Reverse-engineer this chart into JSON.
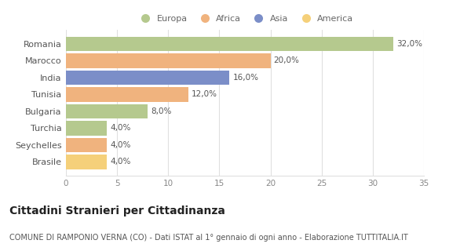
{
  "countries": [
    "Romania",
    "Marocco",
    "India",
    "Tunisia",
    "Bulgaria",
    "Turchia",
    "Seychelles",
    "Brasile"
  ],
  "values": [
    32.0,
    20.0,
    16.0,
    12.0,
    8.0,
    4.0,
    4.0,
    4.0
  ],
  "labels": [
    "32,0%",
    "20,0%",
    "16,0%",
    "12,0%",
    "8,0%",
    "4,0%",
    "4,0%",
    "4,0%"
  ],
  "colors": [
    "#b5c98e",
    "#f0b37e",
    "#7b8ec8",
    "#f0b37e",
    "#b5c98e",
    "#b5c98e",
    "#f0b37e",
    "#f5d07a"
  ],
  "legend_labels": [
    "Europa",
    "Africa",
    "Asia",
    "America"
  ],
  "legend_colors": [
    "#b5c98e",
    "#f0b37e",
    "#7b8ec8",
    "#f5d07a"
  ],
  "xlim": [
    0,
    35
  ],
  "xticks": [
    0,
    5,
    10,
    15,
    20,
    25,
    30,
    35
  ],
  "title": "Cittadini Stranieri per Cittadinanza",
  "subtitle": "COMUNE DI RAMPONIO VERNA (CO) - Dati ISTAT al 1° gennaio di ogni anno - Elaborazione TUTTITALIA.IT",
  "bg_color": "#ffffff",
  "plot_bg_color": "#ffffff",
  "grid_color": "#e0e0e0",
  "bar_height": 0.85,
  "label_fontsize": 7.5,
  "ytick_fontsize": 8,
  "xtick_fontsize": 7.5,
  "title_fontsize": 10,
  "subtitle_fontsize": 7
}
